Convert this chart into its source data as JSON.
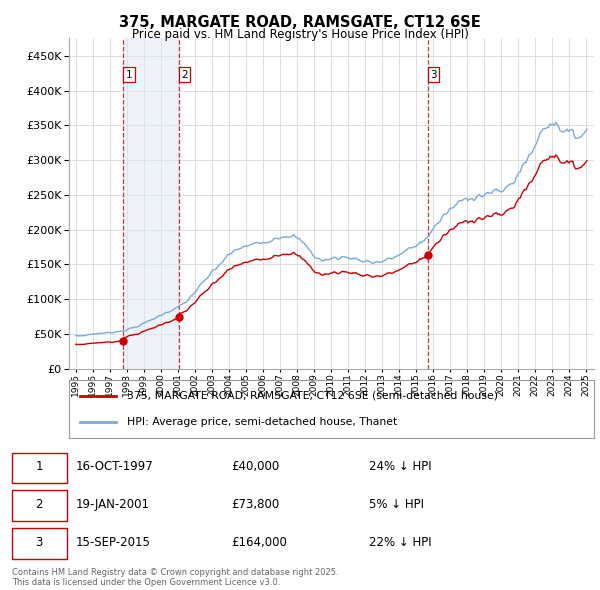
{
  "title": "375, MARGATE ROAD, RAMSGATE, CT12 6SE",
  "subtitle": "Price paid vs. HM Land Registry's House Price Index (HPI)",
  "legend_line1": "375, MARGATE ROAD, RAMSGATE, CT12 6SE (semi-detached house)",
  "legend_line2": "HPI: Average price, semi-detached house, Thanet",
  "footer1": "Contains HM Land Registry data © Crown copyright and database right 2025.",
  "footer2": "This data is licensed under the Open Government Licence v3.0.",
  "transactions": [
    {
      "label": "1",
      "date": "16-OCT-1997",
      "price": "£40,000",
      "hpi": "24% ↓ HPI",
      "year": 1997.79,
      "value": 40000
    },
    {
      "label": "2",
      "date": "19-JAN-2001",
      "price": "£73,800",
      "hpi": "5% ↓ HPI",
      "year": 2001.05,
      "value": 73800
    },
    {
      "label": "3",
      "date": "15-SEP-2015",
      "price": "£164,000",
      "hpi": "22% ↓ HPI",
      "year": 2015.71,
      "value": 164000
    }
  ],
  "vline_years": [
    1997.79,
    2001.05,
    2015.71
  ],
  "vline_labels": [
    "1",
    "2",
    "3"
  ],
  "ylim": [
    0,
    475000
  ],
  "yticks": [
    0,
    50000,
    100000,
    150000,
    200000,
    250000,
    300000,
    350000,
    400000,
    450000
  ],
  "background_color": "#ffffff",
  "grid_color": "#dddddd",
  "red_color": "#cc0000",
  "blue_color": "#7aacda",
  "blue_fill": "#dce9f5",
  "vline_color": "#cc0000"
}
